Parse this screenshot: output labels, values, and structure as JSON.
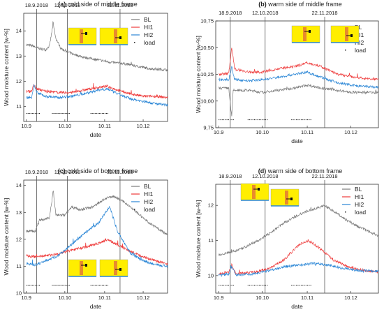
{
  "figure_colors": {
    "BL": "#7a7a7a",
    "HI1": "#ee3a3a",
    "HI2": "#2a86d6",
    "load": "#222222",
    "inset_bg": "#ffee00",
    "inset_bar": "#e88b2d"
  },
  "chart_data": [
    {
      "type": "line",
      "panel": "(a)",
      "title": "cold side of middle frame",
      "xlabel": "date",
      "ylabel": "Wood moisture content [w-%]",
      "x_ticks": [
        "10.9",
        "10.10",
        "10.11",
        "10.12"
      ],
      "y_ticks": [
        "11",
        "12",
        "13",
        "14"
      ],
      "ylim": [
        10.4,
        14.7
      ],
      "vlines": [
        {
          "label": "18.9.2018",
          "date": "2018-09-18"
        },
        {
          "label": "12.10.2018",
          "date": "2018-10-12"
        },
        {
          "label": "22.11.2018",
          "date": "2018-11-22"
        }
      ],
      "legend": [
        "BL",
        "HI1",
        "HI2",
        "load"
      ],
      "legend_position": "top-right",
      "series": [
        {
          "name": "BL",
          "points": [
            [
              "2018-09-10",
              13.45
            ],
            [
              "2018-09-15",
              13.4
            ],
            [
              "2018-09-20",
              13.3
            ],
            [
              "2018-09-25",
              13.25
            ],
            [
              "2018-09-28",
              13.4
            ],
            [
              "2018-10-01",
              14.3
            ],
            [
              "2018-10-03",
              13.7
            ],
            [
              "2018-10-07",
              13.3
            ],
            [
              "2018-10-15",
              13.1
            ],
            [
              "2018-10-25",
              12.95
            ],
            [
              "2018-11-05",
              12.85
            ],
            [
              "2018-11-15",
              12.75
            ],
            [
              "2018-11-25",
              12.7
            ],
            [
              "2018-12-05",
              12.6
            ],
            [
              "2018-12-15",
              12.5
            ],
            [
              "2018-12-28",
              12.45
            ]
          ]
        },
        {
          "name": "HI1",
          "points": [
            [
              "2018-09-10",
              11.6
            ],
            [
              "2018-09-14",
              11.6
            ],
            [
              "2018-09-16",
              11.85
            ],
            [
              "2018-09-18",
              11.7
            ],
            [
              "2018-09-25",
              11.6
            ],
            [
              "2018-10-05",
              11.55
            ],
            [
              "2018-10-15",
              11.55
            ],
            [
              "2018-10-25",
              11.65
            ],
            [
              "2018-11-05",
              11.75
            ],
            [
              "2018-11-12",
              11.8
            ],
            [
              "2018-11-20",
              11.65
            ],
            [
              "2018-11-30",
              11.5
            ],
            [
              "2018-12-10",
              11.4
            ],
            [
              "2018-12-20",
              11.4
            ],
            [
              "2018-12-28",
              11.35
            ]
          ]
        },
        {
          "name": "HI2",
          "points": [
            [
              "2018-09-10",
              11.35
            ],
            [
              "2018-09-14",
              11.35
            ],
            [
              "2018-09-16",
              11.85
            ],
            [
              "2018-09-18",
              11.55
            ],
            [
              "2018-09-25",
              11.4
            ],
            [
              "2018-10-05",
              11.35
            ],
            [
              "2018-10-15",
              11.4
            ],
            [
              "2018-10-25",
              11.5
            ],
            [
              "2018-11-05",
              11.65
            ],
            [
              "2018-11-12",
              11.7
            ],
            [
              "2018-11-20",
              11.5
            ],
            [
              "2018-11-30",
              11.3
            ],
            [
              "2018-12-10",
              11.2
            ],
            [
              "2018-12-20",
              11.1
            ],
            [
              "2018-12-28",
              11.05
            ]
          ]
        }
      ]
    },
    {
      "type": "line",
      "panel": "(b)",
      "title": "warm side of middle frame",
      "xlabel": "date",
      "ylabel": "Wood moisture content [w-%]",
      "x_ticks": [
        "10.9",
        "10.10",
        "10.11",
        "10.12"
      ],
      "y_ticks": [
        "9,75",
        "10,00",
        "10,25",
        "10,50",
        "10,75"
      ],
      "ylim": [
        9.75,
        10.75
      ],
      "vlines": [
        {
          "label": "18.9.2018",
          "date": "2018-09-18"
        },
        {
          "label": "12.10.2018",
          "date": "2018-10-12"
        },
        {
          "label": "22.11.2018",
          "date": "2018-11-22"
        }
      ],
      "legend": [
        "BL",
        "HI1",
        "HI2",
        "load"
      ],
      "legend_position": "top-right",
      "series": [
        {
          "name": "BL",
          "points": [
            [
              "2018-09-10",
              10.12
            ],
            [
              "2018-09-17",
              10.12
            ],
            [
              "2018-09-19",
              9.85
            ],
            [
              "2018-09-20",
              10.1
            ],
            [
              "2018-10-01",
              10.1
            ],
            [
              "2018-10-10",
              10.08
            ],
            [
              "2018-10-20",
              10.1
            ],
            [
              "2018-11-01",
              10.12
            ],
            [
              "2018-11-10",
              10.15
            ],
            [
              "2018-11-20",
              10.12
            ],
            [
              "2018-12-01",
              10.1
            ],
            [
              "2018-12-10",
              10.08
            ],
            [
              "2018-12-28",
              10.08
            ]
          ]
        },
        {
          "name": "HI1",
          "points": [
            [
              "2018-09-10",
              10.25
            ],
            [
              "2018-09-17",
              10.26
            ],
            [
              "2018-09-19",
              10.5
            ],
            [
              "2018-09-21",
              10.3
            ],
            [
              "2018-10-01",
              10.27
            ],
            [
              "2018-10-10",
              10.27
            ],
            [
              "2018-10-20",
              10.3
            ],
            [
              "2018-11-01",
              10.32
            ],
            [
              "2018-11-10",
              10.36
            ],
            [
              "2018-11-18",
              10.33
            ],
            [
              "2018-12-01",
              10.25
            ],
            [
              "2018-12-15",
              10.22
            ],
            [
              "2018-12-28",
              10.2
            ]
          ]
        },
        {
          "name": "HI2",
          "points": [
            [
              "2018-09-10",
              10.2
            ],
            [
              "2018-09-17",
              10.2
            ],
            [
              "2018-09-19",
              10.32
            ],
            [
              "2018-09-21",
              10.2
            ],
            [
              "2018-10-01",
              10.19
            ],
            [
              "2018-10-10",
              10.2
            ],
            [
              "2018-10-20",
              10.22
            ],
            [
              "2018-11-01",
              10.25
            ],
            [
              "2018-11-10",
              10.27
            ],
            [
              "2018-11-18",
              10.23
            ],
            [
              "2018-12-01",
              10.17
            ],
            [
              "2018-12-15",
              10.14
            ],
            [
              "2018-12-28",
              10.13
            ]
          ]
        }
      ]
    },
    {
      "type": "line",
      "panel": "(c)",
      "title": "cold side of bottom frame",
      "xlabel": "date",
      "ylabel": "Wood moisture content [w-%]",
      "x_ticks": [
        "10.9",
        "10.10",
        "10.11",
        "10.12"
      ],
      "y_ticks": [
        "10",
        "11",
        "12",
        "13",
        "14"
      ],
      "ylim": [
        10,
        14.2
      ],
      "vlines": [
        {
          "label": "18.9.2018",
          "date": "2018-09-18"
        },
        {
          "label": "12.10.2018",
          "date": "2018-10-12"
        },
        {
          "label": "22.11.2018",
          "date": "2018-11-22"
        }
      ],
      "legend": [
        "BL",
        "HI1",
        "HI2",
        "load"
      ],
      "legend_position": "top-right",
      "series": [
        {
          "name": "BL",
          "points": [
            [
              "2018-09-10",
              12.3
            ],
            [
              "2018-09-17",
              12.3
            ],
            [
              "2018-09-20",
              12.7
            ],
            [
              "2018-09-28",
              12.8
            ],
            [
              "2018-10-01",
              13.8
            ],
            [
              "2018-10-03",
              12.9
            ],
            [
              "2018-10-10",
              12.9
            ],
            [
              "2018-10-15",
              13.2
            ],
            [
              "2018-10-22",
              13.1
            ],
            [
              "2018-11-01",
              13.2
            ],
            [
              "2018-11-10",
              13.5
            ],
            [
              "2018-11-17",
              13.6
            ],
            [
              "2018-11-25",
              13.4
            ],
            [
              "2018-12-05",
              13.0
            ],
            [
              "2018-12-15",
              12.6
            ],
            [
              "2018-12-28",
              12.2
            ]
          ]
        },
        {
          "name": "HI1",
          "points": [
            [
              "2018-09-10",
              11.4
            ],
            [
              "2018-09-17",
              11.35
            ],
            [
              "2018-09-25",
              11.4
            ],
            [
              "2018-10-05",
              11.45
            ],
            [
              "2018-10-15",
              11.6
            ],
            [
              "2018-10-25",
              11.7
            ],
            [
              "2018-11-05",
              11.85
            ],
            [
              "2018-11-12",
              12.0
            ],
            [
              "2018-11-20",
              11.8
            ],
            [
              "2018-11-30",
              11.55
            ],
            [
              "2018-12-10",
              11.35
            ],
            [
              "2018-12-20",
              11.2
            ],
            [
              "2018-12-28",
              11.1
            ]
          ]
        },
        {
          "name": "HI2",
          "points": [
            [
              "2018-09-10",
              11.1
            ],
            [
              "2018-09-17",
              11.05
            ],
            [
              "2018-09-25",
              11.2
            ],
            [
              "2018-10-05",
              11.4
            ],
            [
              "2018-10-15",
              11.8
            ],
            [
              "2018-10-25",
              12.2
            ],
            [
              "2018-11-05",
              12.6
            ],
            [
              "2018-11-14",
              13.2
            ],
            [
              "2018-11-20",
              12.3
            ],
            [
              "2018-11-30",
              11.5
            ],
            [
              "2018-12-10",
              11.2
            ],
            [
              "2018-12-20",
              11.05
            ],
            [
              "2018-12-28",
              11.0
            ]
          ]
        }
      ]
    },
    {
      "type": "line",
      "panel": "(d)",
      "title": "warm side of bottom frame",
      "xlabel": "date",
      "ylabel": "Wood moisture content [w-%]",
      "x_ticks": [
        "10.9",
        "10.10",
        "10.11",
        "10.12"
      ],
      "y_ticks": [
        "10",
        "11",
        "12"
      ],
      "ylim": [
        9.5,
        12.6
      ],
      "vlines": [
        {
          "label": "18.9.2018",
          "date": "2018-09-18"
        },
        {
          "label": "12.10.2018",
          "date": "2018-10-12"
        },
        {
          "label": "22.11.2018",
          "date": "2018-11-22"
        }
      ],
      "legend": [
        "BL",
        "HI1",
        "HI2",
        "load"
      ],
      "legend_position": "top-right",
      "series": [
        {
          "name": "BL",
          "points": [
            [
              "2018-09-10",
              10.6
            ],
            [
              "2018-09-17",
              10.65
            ],
            [
              "2018-09-25",
              10.75
            ],
            [
              "2018-10-05",
              10.95
            ],
            [
              "2018-10-15",
              11.2
            ],
            [
              "2018-10-25",
              11.5
            ],
            [
              "2018-11-05",
              11.75
            ],
            [
              "2018-11-15",
              11.9
            ],
            [
              "2018-11-22",
              12.0
            ],
            [
              "2018-12-01",
              11.75
            ],
            [
              "2018-12-10",
              11.5
            ],
            [
              "2018-12-20",
              11.3
            ],
            [
              "2018-12-28",
              11.15
            ]
          ]
        },
        {
          "name": "HI1",
          "points": [
            [
              "2018-09-10",
              10.05
            ],
            [
              "2018-09-17",
              10.1
            ],
            [
              "2018-09-19",
              10.3
            ],
            [
              "2018-09-22",
              10.05
            ],
            [
              "2018-10-05",
              10.1
            ],
            [
              "2018-10-15",
              10.2
            ],
            [
              "2018-10-25",
              10.45
            ],
            [
              "2018-11-05",
              10.9
            ],
            [
              "2018-11-11",
              11.0
            ],
            [
              "2018-11-18",
              10.8
            ],
            [
              "2018-11-28",
              10.45
            ],
            [
              "2018-12-08",
              10.25
            ],
            [
              "2018-12-18",
              10.15
            ],
            [
              "2018-12-28",
              10.1
            ]
          ]
        },
        {
          "name": "HI2",
          "points": [
            [
              "2018-09-10",
              10.0
            ],
            [
              "2018-09-17",
              10.05
            ],
            [
              "2018-09-19",
              10.25
            ],
            [
              "2018-09-22",
              10.02
            ],
            [
              "2018-10-05",
              10.05
            ],
            [
              "2018-10-15",
              10.15
            ],
            [
              "2018-10-25",
              10.25
            ],
            [
              "2018-11-05",
              10.3
            ],
            [
              "2018-11-15",
              10.35
            ],
            [
              "2018-11-25",
              10.3
            ],
            [
              "2018-12-05",
              10.2
            ],
            [
              "2018-12-15",
              10.15
            ],
            [
              "2018-12-28",
              10.12
            ]
          ]
        }
      ]
    }
  ]
}
